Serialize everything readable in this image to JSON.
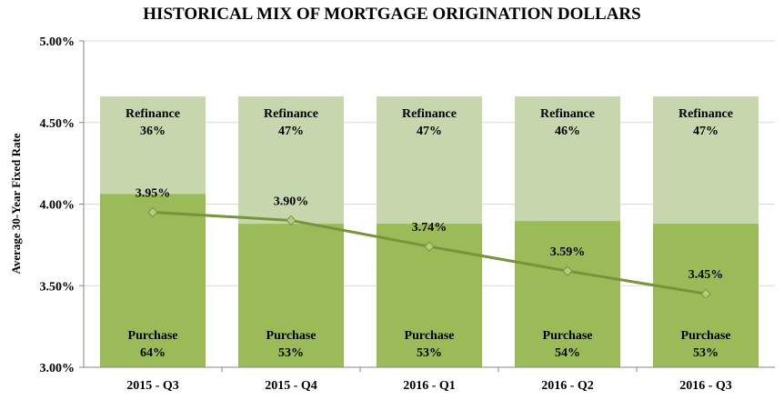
{
  "chart_data": {
    "type": "bar",
    "title": "HISTORICAL MIX OF MORTGAGE ORIGINATION DOLLARS",
    "xlabel": "",
    "ylabel": "Average 30-Year Fixed Rate",
    "ylim": [
      3.0,
      5.0
    ],
    "y_ticks": [
      "3.00%",
      "3.50%",
      "4.00%",
      "4.50%",
      "5.00%"
    ],
    "y_tick_values": [
      3.0,
      3.5,
      4.0,
      4.5,
      5.0
    ],
    "grid": true,
    "categories": [
      "2015 - Q3",
      "2015 - Q4",
      "2016 - Q1",
      "2016 - Q2",
      "2016 - Q3"
    ],
    "series": [
      {
        "name": "Purchase",
        "kind": "stacked-bar-share",
        "color": "#9bbb59",
        "values": [
          64,
          53,
          53,
          54,
          53
        ],
        "labels": [
          "64%",
          "53%",
          "53%",
          "54%",
          "53%"
        ]
      },
      {
        "name": "Refinance",
        "kind": "stacked-bar-share",
        "color": "#c6d7ad",
        "values": [
          36,
          47,
          47,
          46,
          47
        ],
        "labels": [
          "36%",
          "47%",
          "47%",
          "46%",
          "47%"
        ]
      },
      {
        "name": "Average 30-Year Fixed Rate",
        "kind": "line",
        "color": "#77933c",
        "values": [
          3.95,
          3.9,
          3.74,
          3.59,
          3.45
        ],
        "labels": [
          "3.95%",
          "3.90%",
          "3.74%",
          "3.59%",
          "3.45%"
        ]
      }
    ],
    "bar_total_level": 4.66
  }
}
